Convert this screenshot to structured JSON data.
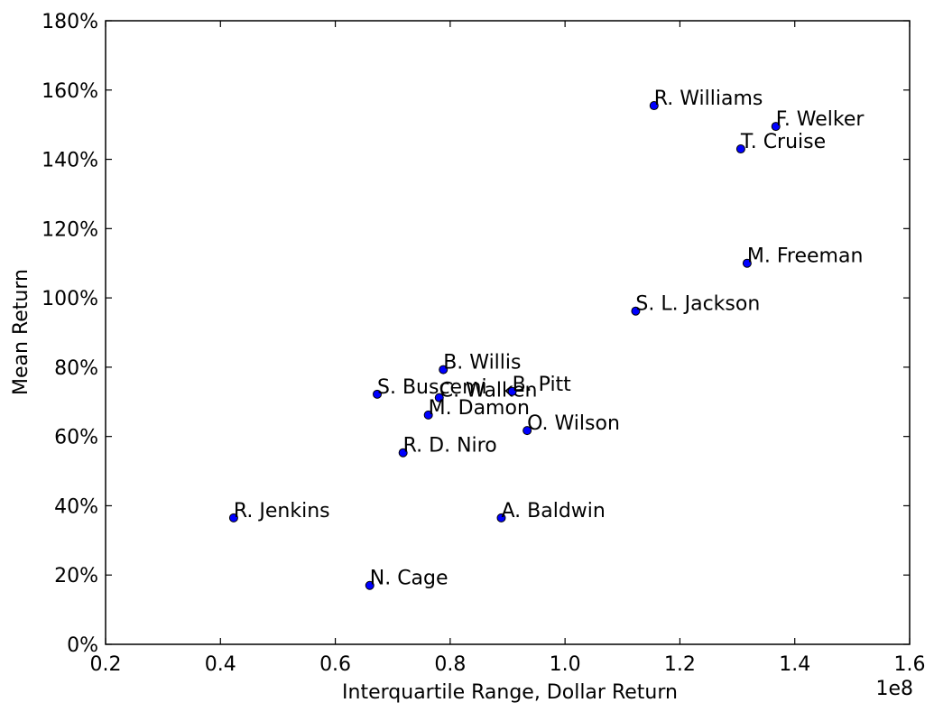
{
  "chart_data": {
    "type": "scatter",
    "title": "",
    "xlabel": "Interquartile Range, Dollar Return",
    "ylabel": "Mean Return",
    "x_offset_label": "1e8",
    "x_scale": 100000000,
    "xlim": [
      20000000,
      160000000
    ],
    "ylim": [
      0,
      1.8
    ],
    "x_ticks": [
      20000000,
      40000000,
      60000000,
      80000000,
      100000000,
      120000000,
      140000000,
      160000000
    ],
    "x_tick_labels": [
      "0.2",
      "0.4",
      "0.6",
      "0.8",
      "1.0",
      "1.2",
      "1.4",
      "1.6"
    ],
    "y_ticks": [
      0,
      0.2,
      0.4,
      0.6,
      0.8,
      1.0,
      1.2,
      1.4,
      1.6,
      1.8
    ],
    "y_tick_labels": [
      "0%",
      "20%",
      "40%",
      "60%",
      "80%",
      "100%",
      "120%",
      "140%",
      "160%",
      "180%"
    ],
    "grid": false,
    "legend": "none",
    "marker_color": "#0000ff",
    "points": [
      {
        "label": "R. Williams",
        "x": 115500000,
        "y": 1.555
      },
      {
        "label": "F. Welker",
        "x": 136700000,
        "y": 1.495
      },
      {
        "label": "T. Cruise",
        "x": 130600000,
        "y": 1.43
      },
      {
        "label": "M. Freeman",
        "x": 131700000,
        "y": 1.1
      },
      {
        "label": "S. L. Jackson",
        "x": 112300000,
        "y": 0.962
      },
      {
        "label": "B. Willis",
        "x": 78800000,
        "y": 0.793
      },
      {
        "label": "S. Buscemi",
        "x": 67300000,
        "y": 0.722
      },
      {
        "label": "C. Walken",
        "x": 78100000,
        "y": 0.712
      },
      {
        "label": "B. Pitt",
        "x": 90800000,
        "y": 0.73
      },
      {
        "label": "M. Damon",
        "x": 76200000,
        "y": 0.662
      },
      {
        "label": "O. Wilson",
        "x": 93400000,
        "y": 0.617
      },
      {
        "label": "R. D. Niro",
        "x": 71800000,
        "y": 0.553
      },
      {
        "label": "R. Jenkins",
        "x": 42300000,
        "y": 0.365
      },
      {
        "label": "A. Baldwin",
        "x": 88900000,
        "y": 0.365
      },
      {
        "label": "N. Cage",
        "x": 66000000,
        "y": 0.17
      }
    ]
  }
}
